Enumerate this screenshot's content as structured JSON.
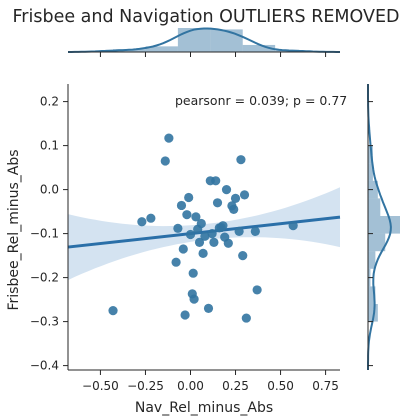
{
  "chart_data": {
    "type": "scatter",
    "title": "Frisbee and Navigation OUTLIERS REMOVED",
    "xlabel": "Nav_Rel_minus_Abs",
    "ylabel": "Frisbee_Rel_minus_Abs",
    "annotation": "pearsonr = 0.039; p = 0.77",
    "xlim": [
      -0.68,
      0.83
    ],
    "ylim": [
      -0.41,
      0.24
    ],
    "xticks": [
      -0.5,
      -0.25,
      0.0,
      0.25,
      0.5,
      0.75
    ],
    "xtick_labels": [
      "−0.50",
      "−0.25",
      "0.00",
      "0.25",
      "0.50",
      "0.75"
    ],
    "yticks": [
      -0.4,
      -0.3,
      -0.2,
      -0.1,
      0.0,
      0.1,
      0.2
    ],
    "ytick_labels": [
      "−0.4",
      "−0.3",
      "−0.2",
      "−0.1",
      "0.0",
      "0.1",
      "0.2"
    ],
    "grid": false,
    "points": [
      {
        "x": -0.43,
        "y": -0.275
      },
      {
        "x": -0.27,
        "y": -0.073
      },
      {
        "x": -0.22,
        "y": -0.065
      },
      {
        "x": -0.14,
        "y": 0.065
      },
      {
        "x": -0.12,
        "y": 0.117
      },
      {
        "x": -0.08,
        "y": -0.165
      },
      {
        "x": -0.07,
        "y": -0.088
      },
      {
        "x": -0.05,
        "y": -0.036
      },
      {
        "x": -0.04,
        "y": -0.135
      },
      {
        "x": -0.03,
        "y": -0.285
      },
      {
        "x": -0.02,
        "y": -0.057
      },
      {
        "x": -0.01,
        "y": -0.018
      },
      {
        "x": 0.0,
        "y": -0.102
      },
      {
        "x": 0.01,
        "y": -0.237
      },
      {
        "x": 0.015,
        "y": -0.19
      },
      {
        "x": 0.02,
        "y": -0.249
      },
      {
        "x": 0.03,
        "y": -0.062
      },
      {
        "x": 0.04,
        "y": -0.09
      },
      {
        "x": 0.05,
        "y": -0.12
      },
      {
        "x": 0.06,
        "y": -0.077
      },
      {
        "x": 0.07,
        "y": -0.145
      },
      {
        "x": 0.08,
        "y": -0.106
      },
      {
        "x": 0.1,
        "y": -0.27
      },
      {
        "x": 0.11,
        "y": 0.02
      },
      {
        "x": 0.12,
        "y": -0.1
      },
      {
        "x": 0.13,
        "y": -0.12
      },
      {
        "x": 0.14,
        "y": 0.02
      },
      {
        "x": 0.15,
        "y": -0.03
      },
      {
        "x": 0.16,
        "y": -0.087
      },
      {
        "x": 0.17,
        "y": -0.086
      },
      {
        "x": 0.18,
        "y": -0.082
      },
      {
        "x": 0.19,
        "y": -0.108
      },
      {
        "x": 0.2,
        "y": 0.0
      },
      {
        "x": 0.21,
        "y": -0.122
      },
      {
        "x": 0.23,
        "y": -0.037
      },
      {
        "x": 0.24,
        "y": -0.045
      },
      {
        "x": 0.25,
        "y": -0.02
      },
      {
        "x": 0.27,
        "y": -0.095
      },
      {
        "x": 0.28,
        "y": 0.068
      },
      {
        "x": 0.29,
        "y": -0.15
      },
      {
        "x": 0.3,
        "y": -0.012
      },
      {
        "x": 0.31,
        "y": -0.292
      },
      {
        "x": 0.36,
        "y": -0.095
      },
      {
        "x": 0.37,
        "y": -0.228
      },
      {
        "x": 0.57,
        "y": -0.082
      }
    ],
    "regression": {
      "slope": 0.045,
      "intercept": -0.1,
      "ci_halfwidth_end": 0.075,
      "ci_halfwidth_center": 0.018
    },
    "color": "#3274a1",
    "band_color": "#c9dcee"
  }
}
